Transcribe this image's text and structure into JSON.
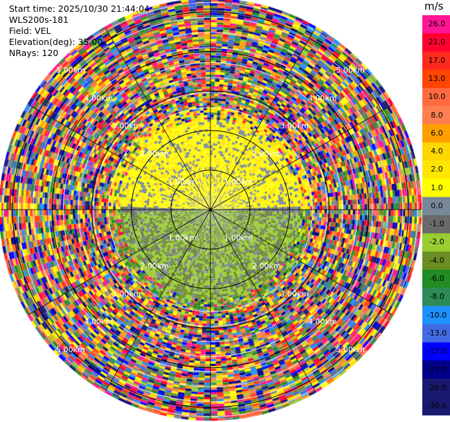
{
  "header": {
    "start_time": "Start time: 2025/10/30 21:44:04",
    "instrument": "WLS200s-181",
    "field": "Field: VEL",
    "elevation": "Elevation(deg): 35.00",
    "nrays": "NRays: 120"
  },
  "colorbar": {
    "unit": "m/s",
    "levels": [
      {
        "label": "26.0",
        "color": "#ff1493"
      },
      {
        "label": "21.0",
        "color": "#ff0030"
      },
      {
        "label": "17.0",
        "color": "#ff2a1e"
      },
      {
        "label": "13.0",
        "color": "#ff4500"
      },
      {
        "label": "10.0",
        "color": "#ff6a40"
      },
      {
        "label": "8.0",
        "color": "#ff7f50"
      },
      {
        "label": "6.0",
        "color": "#ff9f00"
      },
      {
        "label": "4.0",
        "color": "#ffd700"
      },
      {
        "label": "2.0",
        "color": "#ffe600"
      },
      {
        "label": "1.0",
        "color": "#ffff00"
      },
      {
        "label": "0.0",
        "color": "#778899"
      },
      {
        "label": "-1.0",
        "color": "#696969"
      },
      {
        "label": "-2.0",
        "color": "#9acd32"
      },
      {
        "label": "-4.0",
        "color": "#6b8e23"
      },
      {
        "label": "-6.0",
        "color": "#228b22"
      },
      {
        "label": "-8.0",
        "color": "#2e8b57"
      },
      {
        "label": "-10.0",
        "color": "#1e90ff"
      },
      {
        "label": "-13.0",
        "color": "#4169e1"
      },
      {
        "label": "-17.0",
        "color": "#0000ff"
      },
      {
        "label": "-21.0",
        "color": "#00008b"
      },
      {
        "label": "-26.0",
        "color": "#191970"
      },
      {
        "label": "-30.0",
        "color": "#191970"
      }
    ]
  },
  "chart_data": {
    "type": "heatmap",
    "projection": "polar PPI",
    "field": "VEL",
    "units": "m/s",
    "elevation_deg": 35.0,
    "n_rays": 120,
    "range_rings_km": [
      1.0,
      2.0,
      3.0,
      4.0,
      5.0
    ],
    "ring_labels": [
      "1.00km",
      "2.00km",
      "3.00km",
      "4.00km",
      "5.00km"
    ],
    "max_range_km": 5.3,
    "velocity_pattern": "near range (< ~2.2 km): positive (1-4 m/s) toward the north, negative (-1 to -2 m/s) toward the south; beyond ~2.2 km noisy values across the full scale"
  }
}
